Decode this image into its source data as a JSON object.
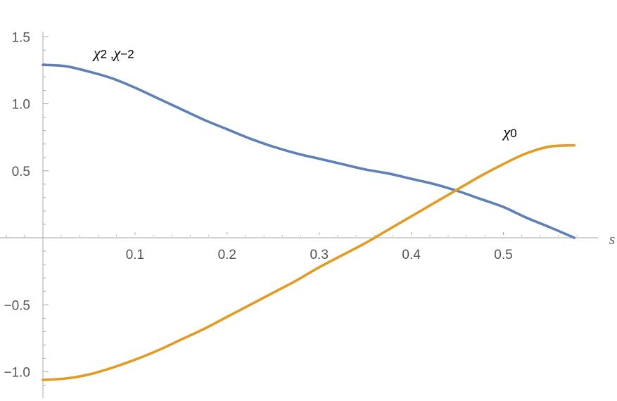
{
  "chart_data": {
    "type": "line",
    "title": "",
    "xlabel": "s",
    "ylabel": "",
    "xlim": [
      0,
      0.58
    ],
    "ylim": [
      -1.15,
      1.55
    ],
    "grid": false,
    "x_ticks": [
      0.1,
      0.2,
      0.3,
      0.4,
      0.5
    ],
    "x_tick_labels": [
      "0.1",
      "0.2",
      "0.3",
      "0.4",
      "0.5"
    ],
    "y_ticks": [
      1.5,
      1.0,
      0.5,
      -0.5,
      -1.0
    ],
    "y_tick_labels": [
      "1.5",
      "1.0",
      "0.5",
      "−0.5",
      "−1.0"
    ],
    "series": [
      {
        "name": "χ2 ,χ−2",
        "color": "#5e81b5",
        "x": [
          0,
          0.025,
          0.05,
          0.075,
          0.1,
          0.125,
          0.15,
          0.175,
          0.2,
          0.225,
          0.25,
          0.275,
          0.3,
          0.325,
          0.35,
          0.375,
          0.4,
          0.425,
          0.45,
          0.475,
          0.5,
          0.525,
          0.55,
          0.577
        ],
        "y": [
          1.29,
          1.28,
          1.24,
          1.19,
          1.12,
          1.04,
          0.96,
          0.88,
          0.81,
          0.74,
          0.68,
          0.63,
          0.59,
          0.55,
          0.51,
          0.48,
          0.44,
          0.4,
          0.35,
          0.29,
          0.23,
          0.15,
          0.08,
          0.0
        ]
      },
      {
        "name": "χ0",
        "color": "#e19c24",
        "x": [
          0,
          0.025,
          0.05,
          0.075,
          0.1,
          0.125,
          0.15,
          0.175,
          0.2,
          0.225,
          0.25,
          0.275,
          0.3,
          0.325,
          0.35,
          0.375,
          0.4,
          0.425,
          0.45,
          0.475,
          0.5,
          0.525,
          0.55,
          0.577
        ],
        "y": [
          -1.06,
          -1.05,
          -1.02,
          -0.97,
          -0.91,
          -0.84,
          -0.76,
          -0.68,
          -0.59,
          -0.5,
          -0.41,
          -0.32,
          -0.22,
          -0.13,
          -0.04,
          0.06,
          0.16,
          0.26,
          0.36,
          0.46,
          0.55,
          0.63,
          0.68,
          0.69
        ]
      }
    ],
    "annotations": [
      {
        "series": 0,
        "base": "χ",
        "sub1": "2",
        "sep": " ,",
        "base2": "χ",
        "sub2": "−2",
        "at_x": 0.055,
        "at_y": 1.34
      },
      {
        "series": 1,
        "base": "χ",
        "sub1": "0",
        "at_x": 0.5,
        "at_y": 0.75
      }
    ],
    "axis_color": "#aaaaaa",
    "label_color": "#555555"
  }
}
